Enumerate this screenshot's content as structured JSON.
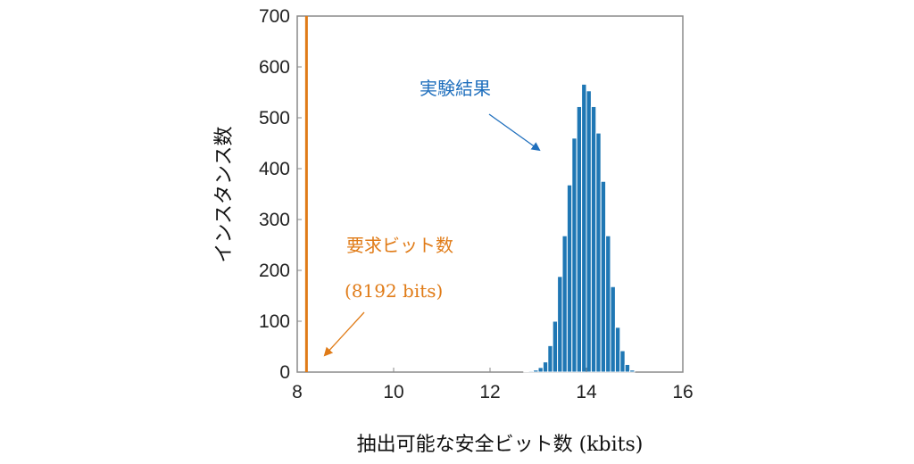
{
  "chart_data": {
    "type": "bar",
    "xlabel": "抽出可能な安全ビット数 (kbits)",
    "ylabel": "インスタンス数",
    "xlim": [
      8,
      16
    ],
    "ylim": [
      0,
      700
    ],
    "xticks": [
      "8",
      "10",
      "12",
      "14",
      "16"
    ],
    "yticks": [
      "0",
      "100",
      "200",
      "300",
      "400",
      "500",
      "600",
      "700"
    ],
    "bin_width": 0.1,
    "bin_centers": [
      12.75,
      12.85,
      12.95,
      13.05,
      13.15,
      13.25,
      13.35,
      13.45,
      13.55,
      13.65,
      13.75,
      13.85,
      13.95,
      14.05,
      14.15,
      14.25,
      14.35,
      14.45,
      14.55,
      14.65,
      14.75,
      14.85,
      14.95
    ],
    "values": [
      1,
      2,
      4,
      9,
      20,
      52,
      100,
      188,
      268,
      368,
      460,
      522,
      566,
      553,
      522,
      470,
      375,
      268,
      168,
      88,
      42,
      15,
      4
    ],
    "reference_line": {
      "x": 8.192
    },
    "colors": {
      "bars": "#1f77b4",
      "reference": "#e07b17",
      "experiment_annotation": "#1f6fbd"
    },
    "annotations": {
      "experiment": "実験結果",
      "required_title": "要求ビット数",
      "required_value": "(8192 bits)"
    }
  }
}
